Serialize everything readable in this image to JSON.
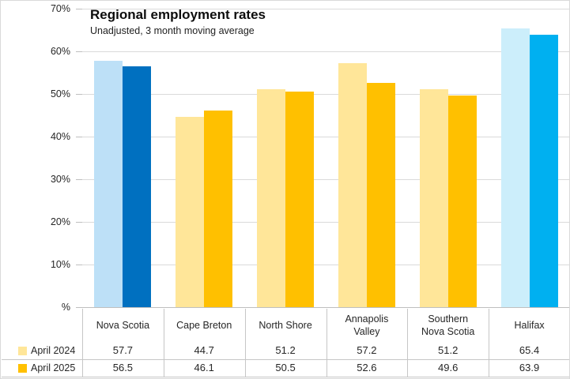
{
  "chart": {
    "title": "Regional employment rates",
    "subtitle": "Unadjusted, 3 month moving average",
    "y_axis": {
      "tick_labels": [
        "70%",
        "60%",
        "50%",
        "40%",
        "30%",
        "20%",
        "10%",
        "%"
      ]
    }
  },
  "chart_data": {
    "type": "bar",
    "title": "Regional employment rates",
    "subtitle": "Unadjusted, 3 month moving average",
    "categories": [
      "Nova Scotia",
      "Cape Breton",
      "North Shore",
      "Annapolis Valley",
      "Southern Nova Scotia",
      "Halifax"
    ],
    "category_lines": [
      [
        "Nova Scotia"
      ],
      [
        "Cape Breton"
      ],
      [
        "North Shore"
      ],
      [
        "Annapolis",
        "Valley"
      ],
      [
        "Southern",
        "Nova Scotia"
      ],
      [
        "Halifax"
      ]
    ],
    "series": [
      {
        "name": "April 2024",
        "values": [
          57.7,
          44.7,
          51.2,
          57.2,
          51.2,
          65.4
        ],
        "legend_color": "#FFE699",
        "bar_colors": [
          "#BDE0F7",
          "#FFE699",
          "#FFE699",
          "#FFE699",
          "#FFE699",
          "#CCEEFB"
        ]
      },
      {
        "name": "April 2025",
        "values": [
          56.5,
          46.1,
          50.5,
          52.6,
          49.6,
          63.9
        ],
        "legend_color": "#FFC000",
        "bar_colors": [
          "#0070C0",
          "#FFC000",
          "#FFC000",
          "#FFC000",
          "#FFC000",
          "#00B0F0"
        ]
      }
    ],
    "ylim": [
      0,
      70
    ],
    "ytick_step": 10,
    "grid": true,
    "legend_position": "table-left",
    "xlabel": "",
    "ylabel": ""
  },
  "colors": {
    "gridline": "#dadada",
    "axis": "#bfbfbf",
    "table_border": "#c6c6c6",
    "text": "#262626"
  }
}
